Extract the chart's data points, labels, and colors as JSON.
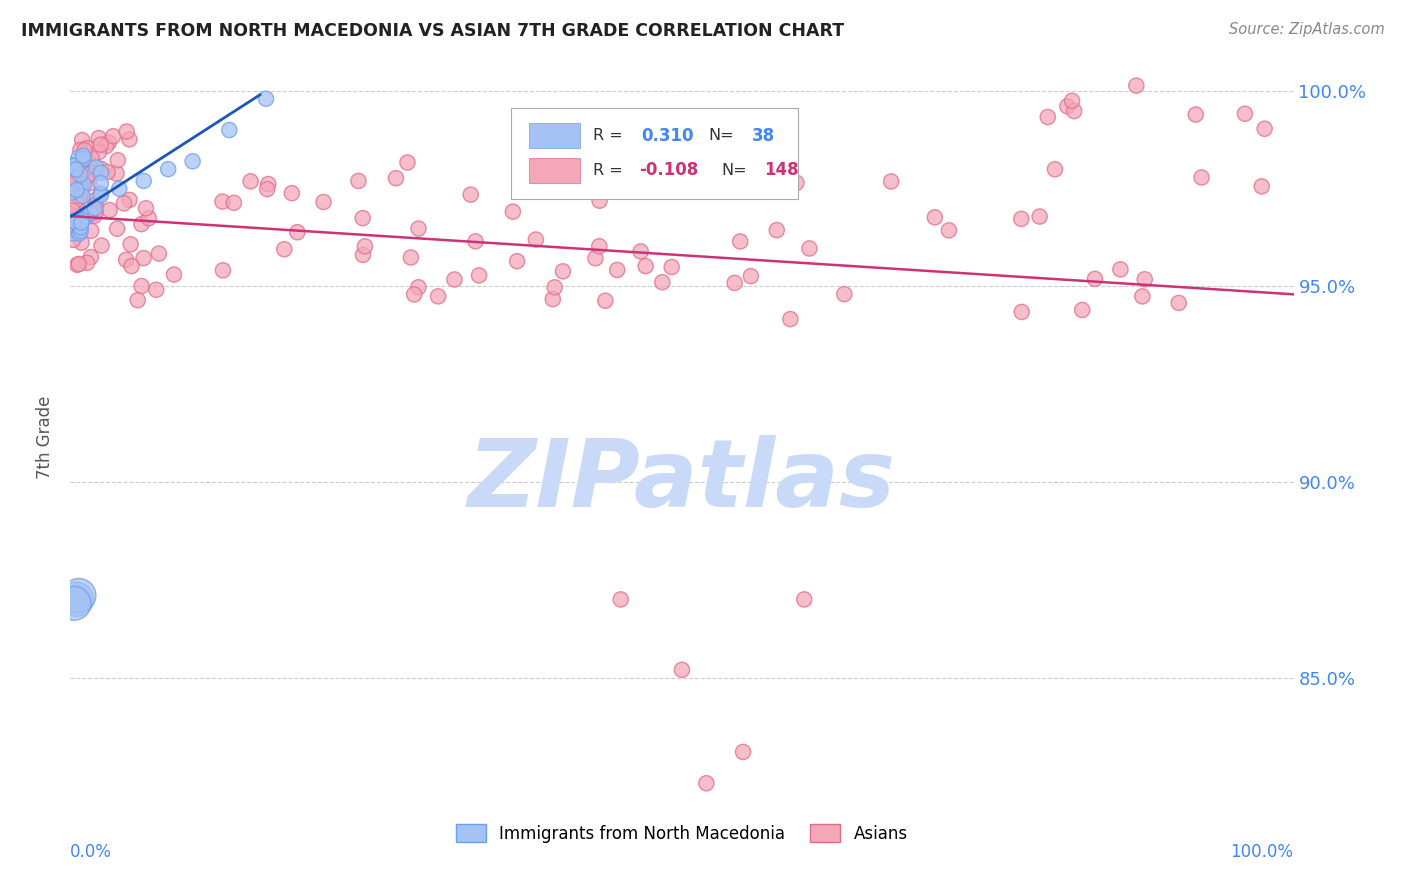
{
  "title": "IMMIGRANTS FROM NORTH MACEDONIA VS ASIAN 7TH GRADE CORRELATION CHART",
  "source": "Source: ZipAtlas.com",
  "ylabel": "7th Grade",
  "ytick_values": [
    1.0,
    0.95,
    0.9,
    0.85
  ],
  "ytick_labels": [
    "100.0%",
    "95.0%",
    "90.0%",
    "85.0%"
  ],
  "blue_color": "#a4c2f4",
  "blue_edge_color": "#6d9eeb",
  "pink_color": "#f4a7b9",
  "pink_edge_color": "#e06c8a",
  "blue_line_color": "#1a56bb",
  "pink_line_color": "#cc3377",
  "watermark_text": "ZIPatlas",
  "watermark_color": "#c9daf8",
  "background_color": "#ffffff",
  "grid_color": "#cccccc",
  "right_label_color": "#4285f4",
  "xlim": [
    0.0,
    1.0
  ],
  "ylim": [
    0.818,
    1.005
  ],
  "legend_r_color": "#333333",
  "legend_blue_val_color": "#4285f4",
  "legend_pink_val_color": "#cc3377",
  "title_color": "#222222",
  "source_color": "#888888",
  "ylabel_color": "#555555"
}
